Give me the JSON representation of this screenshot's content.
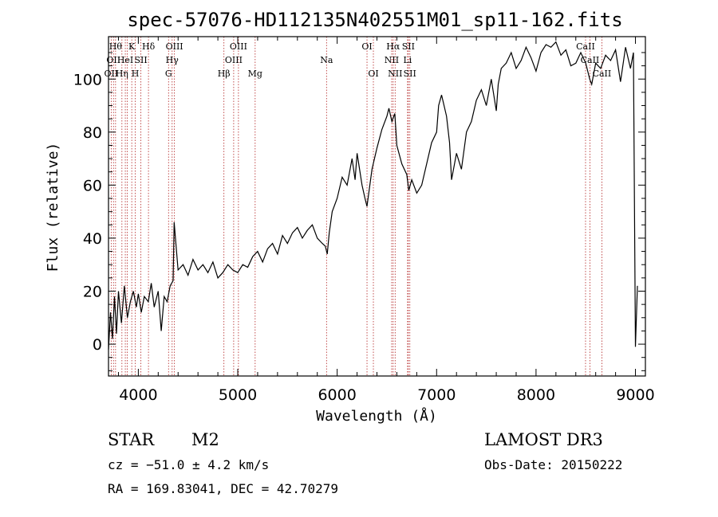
{
  "chart_data": {
    "type": "line",
    "title": "spec-57076-HD112135N402551M01_sp11-162.fits",
    "xlabel": "Wavelength (Å)",
    "ylabel": "Flux (relative)",
    "xlim": [
      3700,
      9100
    ],
    "ylim": [
      -12,
      116
    ],
    "x_ticks": [
      4000,
      5000,
      6000,
      7000,
      8000,
      9000
    ],
    "y_ticks": [
      0,
      20,
      40,
      60,
      80,
      100
    ],
    "series": [
      {
        "name": "spectrum",
        "x": [
          3700,
          3720,
          3740,
          3760,
          3780,
          3800,
          3830,
          3860,
          3890,
          3920,
          3950,
          3980,
          4000,
          4030,
          4060,
          4100,
          4130,
          4160,
          4200,
          4230,
          4260,
          4290,
          4320,
          4350,
          4360,
          4400,
          4450,
          4500,
          4550,
          4600,
          4650,
          4700,
          4750,
          4800,
          4850,
          4900,
          4950,
          5000,
          5050,
          5100,
          5150,
          5200,
          5250,
          5300,
          5350,
          5400,
          5450,
          5500,
          5550,
          5600,
          5650,
          5700,
          5750,
          5800,
          5850,
          5880,
          5900,
          5920,
          5950,
          6000,
          6050,
          6100,
          6150,
          6180,
          6200,
          6250,
          6280,
          6300,
          6350,
          6400,
          6450,
          6500,
          6520,
          6550,
          6580,
          6600,
          6650,
          6700,
          6720,
          6750,
          6800,
          6850,
          6900,
          6950,
          7000,
          7020,
          7050,
          7100,
          7130,
          7150,
          7200,
          7250,
          7300,
          7350,
          7400,
          7450,
          7500,
          7550,
          7600,
          7620,
          7650,
          7700,
          7750,
          7800,
          7850,
          7900,
          7950,
          8000,
          8050,
          8100,
          8150,
          8200,
          8250,
          8300,
          8350,
          8400,
          8450,
          8500,
          8540,
          8560,
          8600,
          8650,
          8700,
          8750,
          8800,
          8850,
          8900,
          8950,
          8980,
          9000,
          9020
        ],
        "y": [
          -2,
          12,
          2,
          18,
          4,
          20,
          8,
          22,
          10,
          16,
          20,
          14,
          19,
          12,
          18,
          16,
          23,
          14,
          20,
          5,
          18,
          16,
          22,
          24,
          46,
          28,
          30,
          26,
          32,
          28,
          30,
          27,
          31,
          25,
          27,
          30,
          28,
          27,
          30,
          29,
          33,
          35,
          31,
          36,
          38,
          34,
          41,
          38,
          42,
          44,
          40,
          43,
          45,
          40,
          38,
          37,
          34,
          42,
          50,
          55,
          63,
          60,
          70,
          62,
          72,
          60,
          55,
          52,
          66,
          74,
          81,
          86,
          89,
          84,
          87,
          75,
          68,
          64,
          58,
          62,
          57,
          60,
          68,
          76,
          80,
          90,
          94,
          86,
          76,
          62,
          72,
          66,
          80,
          84,
          92,
          96,
          90,
          100,
          88,
          98,
          104,
          106,
          110,
          104,
          107,
          112,
          108,
          103,
          110,
          113,
          112,
          114,
          109,
          111,
          105,
          106,
          110,
          106,
          100,
          98,
          106,
          104,
          109,
          107,
          111,
          99,
          112,
          104,
          110,
          -1,
          22
        ]
      }
    ],
    "lines": [
      {
        "lambda": 3727,
        "label": "OII",
        "row": 2
      },
      {
        "lambda": 3750,
        "label": "OII",
        "row": 1
      },
      {
        "lambda": 3771,
        "label": "Hθ",
        "row": 0
      },
      {
        "lambda": 3835,
        "label": "Hη",
        "row": 2
      },
      {
        "lambda": 3869,
        "label": "HeI",
        "row": 1
      },
      {
        "lambda": 3889,
        "label": "",
        "row": 0
      },
      {
        "lambda": 3934,
        "label": "K",
        "row": 0
      },
      {
        "lambda": 3969,
        "label": "H",
        "row": 2
      },
      {
        "lambda": 4026,
        "label": "SII",
        "row": 1
      },
      {
        "lambda": 4102,
        "label": "Hδ",
        "row": 0
      },
      {
        "lambda": 4304,
        "label": "G",
        "row": 2
      },
      {
        "lambda": 4340,
        "label": "Hγ",
        "row": 1
      },
      {
        "lambda": 4363,
        "label": "OIII",
        "row": 0
      },
      {
        "lambda": 4861,
        "label": "Hβ",
        "row": 2
      },
      {
        "lambda": 4959,
        "label": "OIII",
        "row": 1
      },
      {
        "lambda": 5007,
        "label": "OIII",
        "row": 0
      },
      {
        "lambda": 5175,
        "label": "Mg",
        "row": 2
      },
      {
        "lambda": 5893,
        "label": "Na",
        "row": 1
      },
      {
        "lambda": 6300,
        "label": "OI",
        "row": 0
      },
      {
        "lambda": 6364,
        "label": "OI",
        "row": 2
      },
      {
        "lambda": 6548,
        "label": "NII",
        "row": 1
      },
      {
        "lambda": 6563,
        "label": "Hα",
        "row": 0
      },
      {
        "lambda": 6583,
        "label": "NII",
        "row": 2
      },
      {
        "lambda": 6708,
        "label": "Li",
        "row": 1
      },
      {
        "lambda": 6716,
        "label": "SII",
        "row": 0
      },
      {
        "lambda": 6731,
        "label": "SII",
        "row": 2
      },
      {
        "lambda": 8498,
        "label": "CaII",
        "row": 0
      },
      {
        "lambda": 8542,
        "label": "CaII",
        "row": 1
      },
      {
        "lambda": 8662,
        "label": "CaII",
        "row": 2
      }
    ]
  },
  "info": {
    "class_label": "STAR",
    "subclass": "M2",
    "survey": "LAMOST DR3",
    "cz": "cz = −51.0 ± 4.2 km/s",
    "obs_date": "Obs-Date: 20150222",
    "coords": "RA = 169.83041, DEC =  42.70279"
  },
  "colors": {
    "line_marker": "#b22222",
    "spectrum": "#000000",
    "axes": "#000000"
  }
}
